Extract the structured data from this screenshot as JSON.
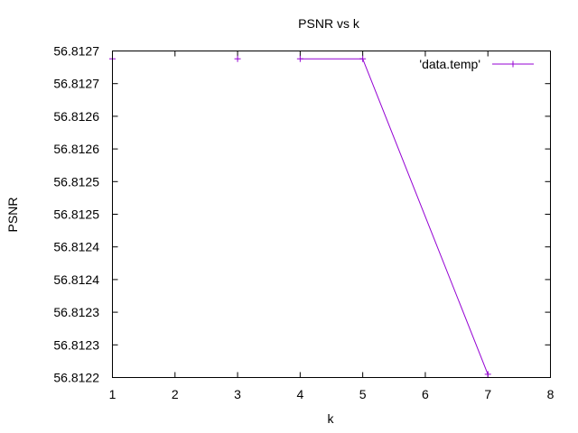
{
  "chart_data": {
    "type": "line",
    "title": "PSNR vs k",
    "xlabel": "k",
    "ylabel": "PSNR",
    "xlim": [
      1,
      8
    ],
    "ylim": [
      56.8122,
      56.8127
    ],
    "x_ticks": [
      1,
      2,
      3,
      4,
      5,
      6,
      7,
      8
    ],
    "y_ticks": [
      56.8122,
      56.81225,
      56.8123,
      56.81235,
      56.8124,
      56.81245,
      56.8125,
      56.81255,
      56.8126,
      56.81265,
      56.8127
    ],
    "y_tick_labels": [
      "56.8122",
      "56.8123",
      "56.8123",
      "56.8124",
      "56.8124",
      "56.8125",
      "56.8125",
      "56.8126",
      "56.8126",
      "56.8127",
      "56.8127"
    ],
    "legend_position": "top-right",
    "series": [
      {
        "name": "'data.temp'",
        "color": "#9400d3",
        "x": [
          1,
          3,
          4,
          5,
          7
        ],
        "y": [
          56.812688,
          56.812688,
          56.812688,
          56.812688,
          56.812205
        ],
        "segments": [
          [
            2,
            3,
            4
          ]
        ]
      }
    ]
  }
}
